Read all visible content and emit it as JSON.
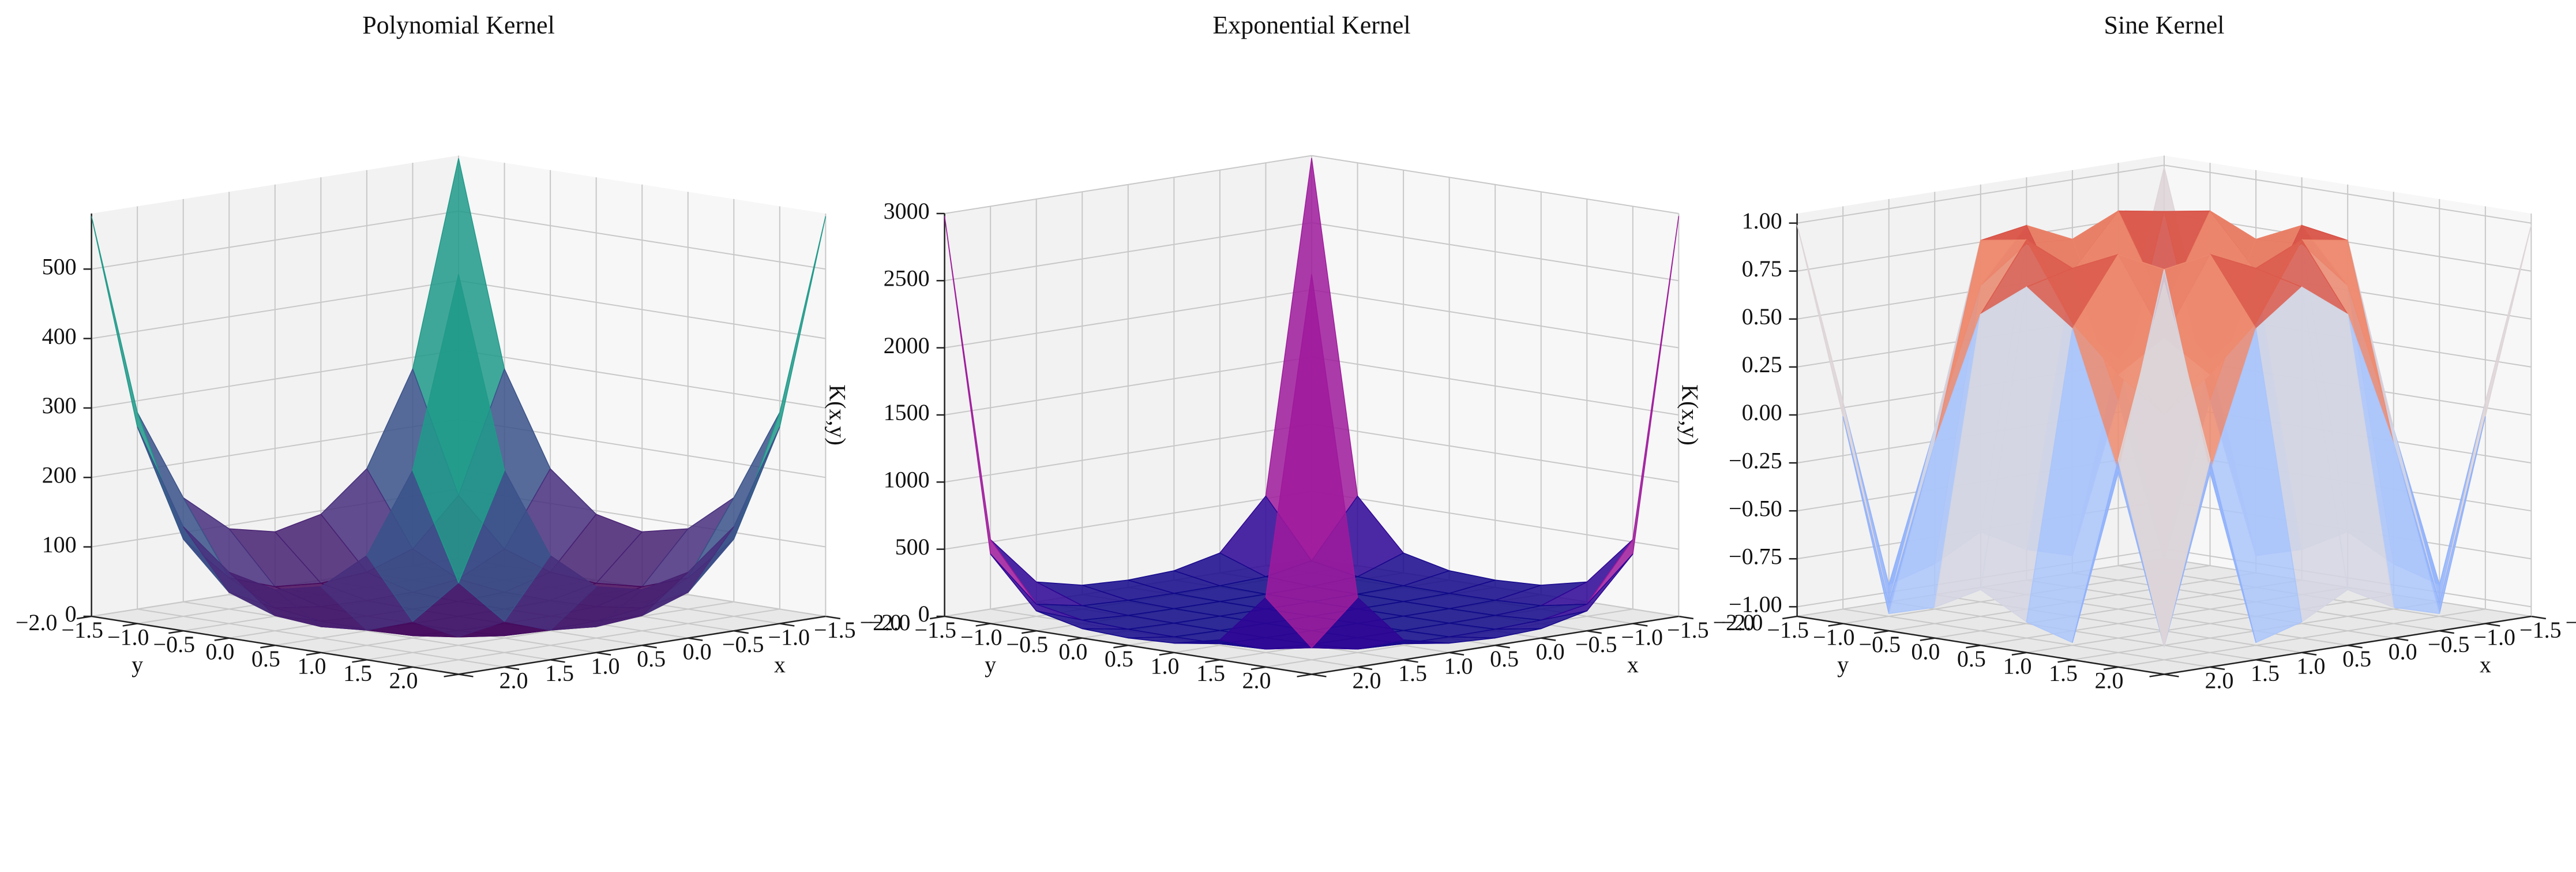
{
  "chart_data": [
    {
      "type": "surface",
      "title": "Polynomial Kernel",
      "xlabel": "x",
      "ylabel": "y",
      "zlabel": "K(x,y)",
      "colormap": "viridis",
      "x": [
        -2,
        -1.5,
        -1,
        -0.5,
        0,
        0.5,
        1,
        1.5,
        2
      ],
      "y": [
        -2,
        -1.5,
        -1,
        -0.5,
        0,
        0.5,
        1,
        1.5,
        2
      ],
      "z": [
        [
          576,
          283.2,
          150,
          94.8,
          80,
          94.8,
          150,
          283.2,
          576
        ],
        [
          283.2,
          111.4,
          44.9,
          21.9,
          16.4,
          21.9,
          44.9,
          111.4,
          283.2
        ],
        [
          150,
          44.9,
          12,
          3.5,
          2,
          3.5,
          12,
          44.9,
          150
        ],
        [
          94.8,
          21.9,
          3.5,
          0.4,
          0.1,
          0.4,
          3.5,
          21.9,
          94.8
        ],
        [
          80,
          16.4,
          2,
          0.1,
          0,
          0.1,
          2,
          16.4,
          80
        ],
        [
          94.8,
          21.9,
          3.5,
          0.4,
          0.1,
          0.4,
          3.5,
          21.9,
          94.8
        ],
        [
          150,
          44.9,
          12,
          3.5,
          2,
          3.5,
          12,
          44.9,
          150
        ],
        [
          283.2,
          111.4,
          44.9,
          21.9,
          16.4,
          21.9,
          44.9,
          111.4,
          283.2
        ],
        [
          576,
          283.2,
          150,
          94.8,
          80,
          94.8,
          150,
          283.2,
          576
        ]
      ],
      "xlim": [
        -2,
        2
      ],
      "ylim": [
        -2,
        2
      ],
      "zlim": [
        0,
        580
      ],
      "xticks": [
        {
          "value": -2,
          "label": "−2.0"
        },
        {
          "value": -1.5,
          "label": "−1.5"
        },
        {
          "value": -1,
          "label": "−1.0"
        },
        {
          "value": -0.5,
          "label": "−0.5"
        },
        {
          "value": 0,
          "label": "0.0"
        },
        {
          "value": 0.5,
          "label": "0.5"
        },
        {
          "value": 1,
          "label": "1.0"
        },
        {
          "value": 1.5,
          "label": "1.5"
        },
        {
          "value": 2,
          "label": "2.0"
        }
      ],
      "yticks": [
        {
          "value": -2,
          "label": "−2.0"
        },
        {
          "value": -1.5,
          "label": "−1.5"
        },
        {
          "value": -1,
          "label": "−1.0"
        },
        {
          "value": -0.5,
          "label": "−0.5"
        },
        {
          "value": 0,
          "label": "0.0"
        },
        {
          "value": 0.5,
          "label": "0.5"
        },
        {
          "value": 1,
          "label": "1.0"
        },
        {
          "value": 1.5,
          "label": "1.5"
        },
        {
          "value": 2,
          "label": "2.0"
        }
      ],
      "zticks": [
        0,
        100,
        200,
        300,
        400,
        500
      ]
    },
    {
      "type": "surface",
      "title": "Exponential Kernel",
      "xlabel": "x",
      "ylabel": "y",
      "zlabel": "K(x,y)",
      "colormap": "plasma",
      "x": [
        -2,
        -1.5,
        -1,
        -0.5,
        0,
        0.5,
        1,
        1.5,
        2
      ],
      "y": [
        -2,
        -1.5,
        -1,
        -0.5,
        0,
        0.5,
        1,
        1.5,
        2
      ],
      "z": [
        [
          2981,
          518,
          148.4,
          70.1,
          54.6,
          70.1,
          148.4,
          518,
          2981
        ],
        [
          518,
          90,
          25.8,
          12.2,
          9.5,
          12.2,
          25.8,
          90,
          518
        ],
        [
          148.4,
          25.8,
          7.4,
          3.5,
          2.7,
          3.5,
          7.4,
          25.8,
          148.4
        ],
        [
          70.1,
          12.2,
          3.5,
          1.6,
          1.3,
          1.6,
          3.5,
          12.2,
          70.1
        ],
        [
          54.6,
          9.5,
          2.7,
          1.3,
          1,
          1.3,
          2.7,
          9.5,
          54.6
        ],
        [
          70.1,
          12.2,
          3.5,
          1.6,
          1.3,
          1.6,
          3.5,
          12.2,
          70.1
        ],
        [
          148.4,
          25.8,
          7.4,
          3.5,
          2.7,
          3.5,
          7.4,
          25.8,
          148.4
        ],
        [
          518,
          90,
          25.8,
          12.2,
          9.5,
          12.2,
          25.8,
          90,
          518
        ],
        [
          2981,
          518,
          148.4,
          70.1,
          54.6,
          70.1,
          148.4,
          518,
          2981
        ]
      ],
      "xlim": [
        -2,
        2
      ],
      "ylim": [
        -2,
        2
      ],
      "zlim": [
        0,
        3000
      ],
      "xticks": [
        {
          "value": -2,
          "label": "−2.0"
        },
        {
          "value": -1.5,
          "label": "−1.5"
        },
        {
          "value": -1,
          "label": "−1.0"
        },
        {
          "value": -0.5,
          "label": "−0.5"
        },
        {
          "value": 0,
          "label": "0.0"
        },
        {
          "value": 0.5,
          "label": "0.5"
        },
        {
          "value": 1,
          "label": "1.0"
        },
        {
          "value": 1.5,
          "label": "1.5"
        },
        {
          "value": 2,
          "label": "2.0"
        }
      ],
      "yticks": [
        {
          "value": -2,
          "label": "−2.0"
        },
        {
          "value": -1.5,
          "label": "−1.5"
        },
        {
          "value": -1,
          "label": "−1.0"
        },
        {
          "value": -0.5,
          "label": "−0.5"
        },
        {
          "value": 0,
          "label": "0.0"
        },
        {
          "value": 0.5,
          "label": "0.5"
        },
        {
          "value": 1,
          "label": "1.0"
        },
        {
          "value": 1.5,
          "label": "1.5"
        },
        {
          "value": 2,
          "label": "2.0"
        }
      ],
      "zticks": [
        0,
        500,
        1000,
        1500,
        2000,
        2500,
        3000
      ]
    },
    {
      "type": "surface",
      "title": "Sine Kernel",
      "xlabel": "x",
      "ylabel": "y",
      "zlabel": "K(x,y)",
      "colormap": "coolwarm",
      "x": [
        -2,
        -1.5,
        -1,
        -0.5,
        0,
        0.5,
        1,
        1.5,
        2
      ],
      "y": [
        -2,
        -1.5,
        -1,
        -0.5,
        0,
        0.5,
        1,
        1.5,
        2
      ],
      "z": [
        [
          0.99,
          0.03,
          -0.96,
          -0.89,
          -0.76,
          -0.89,
          -0.96,
          0.03,
          0.99
        ],
        [
          0.03,
          -0.98,
          -0.11,
          0.6,
          0.78,
          0.6,
          -0.11,
          -0.98,
          0.03
        ],
        [
          -0.96,
          -0.11,
          0.91,
          0.95,
          0.84,
          0.95,
          0.91,
          -0.11,
          -0.96
        ],
        [
          -0.89,
          0.6,
          0.95,
          0.48,
          0.25,
          0.48,
          0.95,
          0.6,
          -0.89
        ],
        [
          -0.76,
          0.78,
          0.84,
          0.25,
          0,
          0.25,
          0.84,
          0.78,
          -0.76
        ],
        [
          -0.89,
          0.6,
          0.95,
          0.48,
          0.25,
          0.48,
          0.95,
          0.6,
          -0.89
        ],
        [
          -0.96,
          -0.11,
          0.91,
          0.95,
          0.84,
          0.95,
          0.91,
          -0.11,
          -0.96
        ],
        [
          0.03,
          -0.98,
          -0.11,
          0.6,
          0.78,
          0.6,
          -0.11,
          -0.98,
          0.03
        ],
        [
          0.99,
          0.03,
          -0.96,
          -0.89,
          -0.76,
          -0.89,
          -0.96,
          0.03,
          0.99
        ]
      ],
      "xlim": [
        -2,
        2
      ],
      "ylim": [
        -2,
        2
      ],
      "zlim": [
        -1.05,
        1.05
      ],
      "xticks": [
        {
          "value": -2,
          "label": "−2.0"
        },
        {
          "value": -1.5,
          "label": "−1.5"
        },
        {
          "value": -1,
          "label": "−1.0"
        },
        {
          "value": -0.5,
          "label": "−0.5"
        },
        {
          "value": 0,
          "label": "0.0"
        },
        {
          "value": 0.5,
          "label": "0.5"
        },
        {
          "value": 1,
          "label": "1.0"
        },
        {
          "value": 1.5,
          "label": "1.5"
        },
        {
          "value": 2,
          "label": "2.0"
        }
      ],
      "yticks": [
        {
          "value": -2,
          "label": "−2.0"
        },
        {
          "value": -1.5,
          "label": "−1.5"
        },
        {
          "value": -1,
          "label": "−1.0"
        },
        {
          "value": -0.5,
          "label": "−0.5"
        },
        {
          "value": 0,
          "label": "0.0"
        },
        {
          "value": 0.5,
          "label": "0.5"
        },
        {
          "value": 1,
          "label": "1.0"
        },
        {
          "value": 1.5,
          "label": "1.5"
        },
        {
          "value": 2,
          "label": "2.0"
        }
      ],
      "zticks": [
        {
          "value": -1,
          "label": "−1.00"
        },
        {
          "value": -0.75,
          "label": "−0.75"
        },
        {
          "value": -0.5,
          "label": "−0.50"
        },
        {
          "value": -0.25,
          "label": "−0.25"
        },
        {
          "value": 0,
          "label": "0.00"
        },
        {
          "value": 0.25,
          "label": "0.25"
        },
        {
          "value": 0.5,
          "label": "0.50"
        },
        {
          "value": 0.75,
          "label": "0.75"
        },
        {
          "value": 1,
          "label": "1.00"
        }
      ]
    }
  ]
}
